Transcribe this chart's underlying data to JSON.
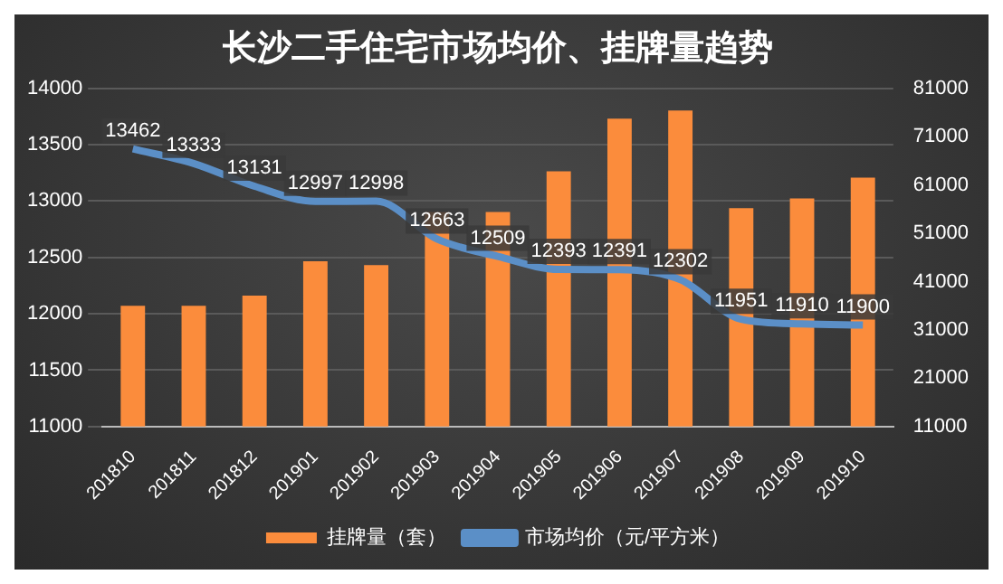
{
  "chart_data": {
    "type": "bar",
    "title": "长沙二手住宅市场均价、挂牌量趋势",
    "categories": [
      "201810",
      "201811",
      "201812",
      "201901",
      "201902",
      "201903",
      "201904",
      "201905",
      "201906",
      "201907",
      "201908",
      "201909",
      "201910"
    ],
    "series": [
      {
        "name": "挂牌量（套）",
        "axis": "y2",
        "color": "#fb8c3c",
        "values": [
          36000,
          36000,
          38100,
          45200,
          44400,
          55400,
          55400,
          63800,
          74700,
          76400,
          56200,
          58200,
          62500
        ]
      },
      {
        "name": "市场均价（元/平方米）",
        "type": "line",
        "axis": "y",
        "color": "#5b8fc7",
        "values": [
          13462,
          13333,
          13131,
          12997,
          12998,
          12663,
          12509,
          12393,
          12391,
          12302,
          11951,
          11910,
          11900
        ],
        "value_labels": [
          "13462",
          "13333",
          "13131",
          "12997",
          "12998",
          "12663",
          "12509",
          "12393",
          "12391",
          "12302",
          "11951",
          "11910",
          "11900"
        ]
      }
    ],
    "ylim": [
      11000,
      14000
    ],
    "yticks": [
      11000,
      11500,
      12000,
      12500,
      13000,
      13500,
      14000
    ],
    "y2lim": [
      11000,
      81000
    ],
    "y2ticks": [
      11000,
      21000,
      31000,
      41000,
      51000,
      61000,
      71000,
      81000
    ],
    "grid": "y",
    "legend": "bottom",
    "marker": "none",
    "line_style": "solid"
  }
}
